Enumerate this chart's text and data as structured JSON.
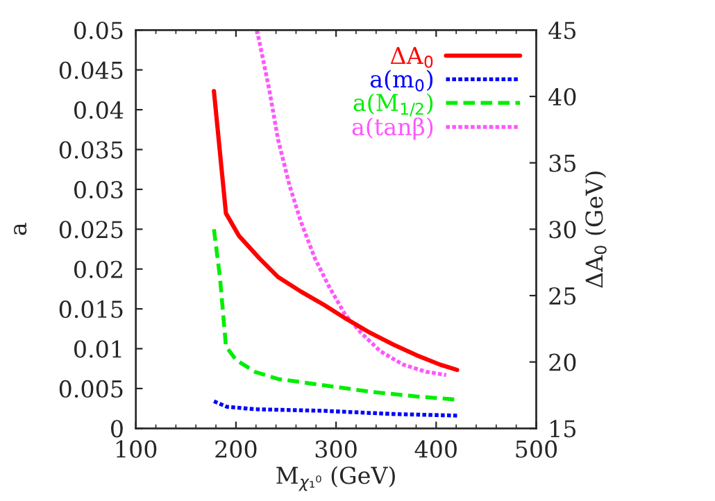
{
  "chart_data": {
    "type": "line",
    "xlabel": "M$_{χ₁⁰}$ (GeV)",
    "ylabel": "a",
    "y2label": "ΔA$_{0}$ (GeV)",
    "xlim": [
      100,
      500
    ],
    "xticks": [
      100,
      200,
      300,
      400,
      500
    ],
    "ylim": [
      0,
      0.05
    ],
    "yticks": [
      0,
      0.005,
      0.01,
      0.015,
      0.02,
      0.025,
      0.03,
      0.035,
      0.04,
      0.045,
      0.05
    ],
    "y2lim": [
      15,
      45
    ],
    "y2ticks": [
      15,
      20,
      25,
      30,
      35,
      40,
      45
    ],
    "legend": "top right",
    "grid": false,
    "series": [
      {
        "name": "ΔA$_{0}$",
        "color": "#ff0000",
        "axis": "y2",
        "line_style": "solid",
        "x": [
          178,
          190,
          203,
          223.5,
          242,
          265,
          288,
          309,
          334,
          357.5,
          380.7,
          404,
          421
        ],
        "values": [
          40.4,
          31.2,
          29.5,
          27.8,
          26.4,
          25.3,
          24.3,
          23.3,
          22.2,
          21.3,
          20.5,
          19.8,
          19.4
        ]
      },
      {
        "name": "a(m$_{0}$)",
        "color": "#0000ff",
        "line_style": "dotted",
        "x": [
          178,
          191,
          219,
          288,
          357,
          421
        ],
        "values": [
          0.0034,
          0.0027,
          0.0024,
          0.0022,
          0.0018,
          0.0016
        ]
      },
      {
        "name": "a(M$_{1/2}$)",
        "color": "#00ee00",
        "line_style": "dashed",
        "x": [
          178,
          184,
          190,
          200,
          219,
          242,
          288,
          334,
          381,
          421
        ],
        "values": [
          0.025,
          0.019,
          0.0103,
          0.0086,
          0.0071,
          0.0062,
          0.0054,
          0.0046,
          0.004,
          0.0036
        ]
      },
      {
        "name": "a(tanβ)",
        "color": "#ff55ff",
        "line_style": "dotted",
        "x": [
          221,
          233,
          242,
          253.5,
          265,
          279,
          293,
          309,
          325,
          344,
          367,
          390,
          410
        ],
        "values": [
          0.05,
          0.0427,
          0.0363,
          0.0305,
          0.0259,
          0.0213,
          0.0178,
          0.0143,
          0.012,
          0.0097,
          0.008,
          0.0071,
          0.0067
        ]
      }
    ]
  }
}
